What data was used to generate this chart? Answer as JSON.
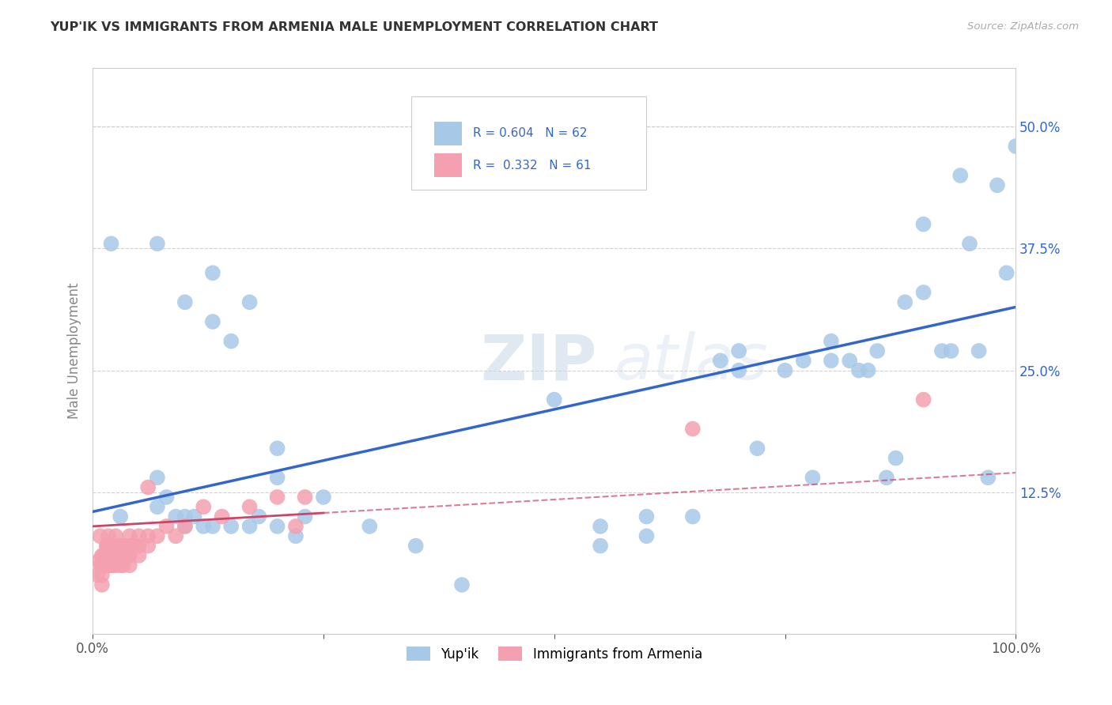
{
  "title": "YUP'IK VS IMMIGRANTS FROM ARMENIA MALE UNEMPLOYMENT CORRELATION CHART",
  "source": "Source: ZipAtlas.com",
  "ylabel": "Male Unemployment",
  "xlim": [
    0.0,
    1.0
  ],
  "ylim": [
    -0.02,
    0.56
  ],
  "y_ticks": [
    0.125,
    0.25,
    0.375,
    0.5
  ],
  "y_tick_labels": [
    "12.5%",
    "25.0%",
    "37.5%",
    "50.0%"
  ],
  "background_color": "#ffffff",
  "grid_color": "#cccccc",
  "watermark_zip": "ZIP",
  "watermark_atlas": "atlas",
  "blue_color": "#a8c8e8",
  "blue_line_color": "#3366cc",
  "pink_color": "#f4a0b0",
  "pink_line_color": "#cc4466",
  "blue_scatter": [
    [
      0.02,
      0.38
    ],
    [
      0.07,
      0.38
    ],
    [
      0.1,
      0.32
    ],
    [
      0.13,
      0.35
    ],
    [
      0.13,
      0.3
    ],
    [
      0.15,
      0.28
    ],
    [
      0.17,
      0.32
    ],
    [
      0.2,
      0.17
    ],
    [
      0.2,
      0.14
    ],
    [
      0.03,
      0.1
    ],
    [
      0.07,
      0.14
    ],
    [
      0.07,
      0.11
    ],
    [
      0.08,
      0.12
    ],
    [
      0.09,
      0.1
    ],
    [
      0.1,
      0.1
    ],
    [
      0.1,
      0.09
    ],
    [
      0.11,
      0.1
    ],
    [
      0.12,
      0.09
    ],
    [
      0.13,
      0.09
    ],
    [
      0.15,
      0.09
    ],
    [
      0.17,
      0.09
    ],
    [
      0.18,
      0.1
    ],
    [
      0.2,
      0.09
    ],
    [
      0.22,
      0.08
    ],
    [
      0.23,
      0.1
    ],
    [
      0.25,
      0.12
    ],
    [
      0.3,
      0.09
    ],
    [
      0.35,
      0.07
    ],
    [
      0.4,
      0.03
    ],
    [
      0.5,
      0.22
    ],
    [
      0.55,
      0.09
    ],
    [
      0.55,
      0.07
    ],
    [
      0.6,
      0.1
    ],
    [
      0.6,
      0.08
    ],
    [
      0.65,
      0.1
    ],
    [
      0.68,
      0.26
    ],
    [
      0.7,
      0.25
    ],
    [
      0.7,
      0.27
    ],
    [
      0.72,
      0.17
    ],
    [
      0.75,
      0.25
    ],
    [
      0.77,
      0.26
    ],
    [
      0.78,
      0.14
    ],
    [
      0.8,
      0.26
    ],
    [
      0.8,
      0.28
    ],
    [
      0.82,
      0.26
    ],
    [
      0.83,
      0.25
    ],
    [
      0.84,
      0.25
    ],
    [
      0.85,
      0.27
    ],
    [
      0.86,
      0.14
    ],
    [
      0.87,
      0.16
    ],
    [
      0.88,
      0.32
    ],
    [
      0.9,
      0.4
    ],
    [
      0.9,
      0.33
    ],
    [
      0.92,
      0.27
    ],
    [
      0.93,
      0.27
    ],
    [
      0.94,
      0.45
    ],
    [
      0.95,
      0.38
    ],
    [
      0.96,
      0.27
    ],
    [
      0.97,
      0.14
    ],
    [
      0.98,
      0.44
    ],
    [
      0.99,
      0.35
    ],
    [
      1.0,
      0.48
    ]
  ],
  "pink_scatter": [
    [
      0.005,
      0.04
    ],
    [
      0.007,
      0.055
    ],
    [
      0.008,
      0.08
    ],
    [
      0.009,
      0.05
    ],
    [
      0.01,
      0.06
    ],
    [
      0.01,
      0.04
    ],
    [
      0.01,
      0.05
    ],
    [
      0.01,
      0.03
    ],
    [
      0.012,
      0.06
    ],
    [
      0.013,
      0.05
    ],
    [
      0.015,
      0.06
    ],
    [
      0.015,
      0.07
    ],
    [
      0.015,
      0.05
    ],
    [
      0.016,
      0.07
    ],
    [
      0.017,
      0.08
    ],
    [
      0.018,
      0.06
    ],
    [
      0.018,
      0.05
    ],
    [
      0.019,
      0.06
    ],
    [
      0.02,
      0.07
    ],
    [
      0.02,
      0.05
    ],
    [
      0.02,
      0.06
    ],
    [
      0.021,
      0.07
    ],
    [
      0.022,
      0.06
    ],
    [
      0.022,
      0.05
    ],
    [
      0.023,
      0.07
    ],
    [
      0.025,
      0.06
    ],
    [
      0.025,
      0.08
    ],
    [
      0.025,
      0.05
    ],
    [
      0.027,
      0.06
    ],
    [
      0.028,
      0.07
    ],
    [
      0.03,
      0.06
    ],
    [
      0.03,
      0.07
    ],
    [
      0.03,
      0.05
    ],
    [
      0.032,
      0.06
    ],
    [
      0.033,
      0.05
    ],
    [
      0.035,
      0.06
    ],
    [
      0.035,
      0.07
    ],
    [
      0.038,
      0.06
    ],
    [
      0.04,
      0.07
    ],
    [
      0.04,
      0.06
    ],
    [
      0.04,
      0.08
    ],
    [
      0.04,
      0.05
    ],
    [
      0.045,
      0.07
    ],
    [
      0.05,
      0.06
    ],
    [
      0.05,
      0.07
    ],
    [
      0.05,
      0.08
    ],
    [
      0.06,
      0.07
    ],
    [
      0.06,
      0.08
    ],
    [
      0.06,
      0.13
    ],
    [
      0.07,
      0.08
    ],
    [
      0.08,
      0.09
    ],
    [
      0.09,
      0.08
    ],
    [
      0.1,
      0.09
    ],
    [
      0.12,
      0.11
    ],
    [
      0.14,
      0.1
    ],
    [
      0.17,
      0.11
    ],
    [
      0.2,
      0.12
    ],
    [
      0.22,
      0.09
    ],
    [
      0.23,
      0.12
    ],
    [
      0.65,
      0.19
    ],
    [
      0.9,
      0.22
    ]
  ],
  "blue_line_x": [
    0.0,
    1.0
  ],
  "blue_line_y": [
    0.105,
    0.315
  ],
  "pink_line_x": [
    0.0,
    1.0
  ],
  "pink_line_y": [
    0.09,
    0.145
  ]
}
